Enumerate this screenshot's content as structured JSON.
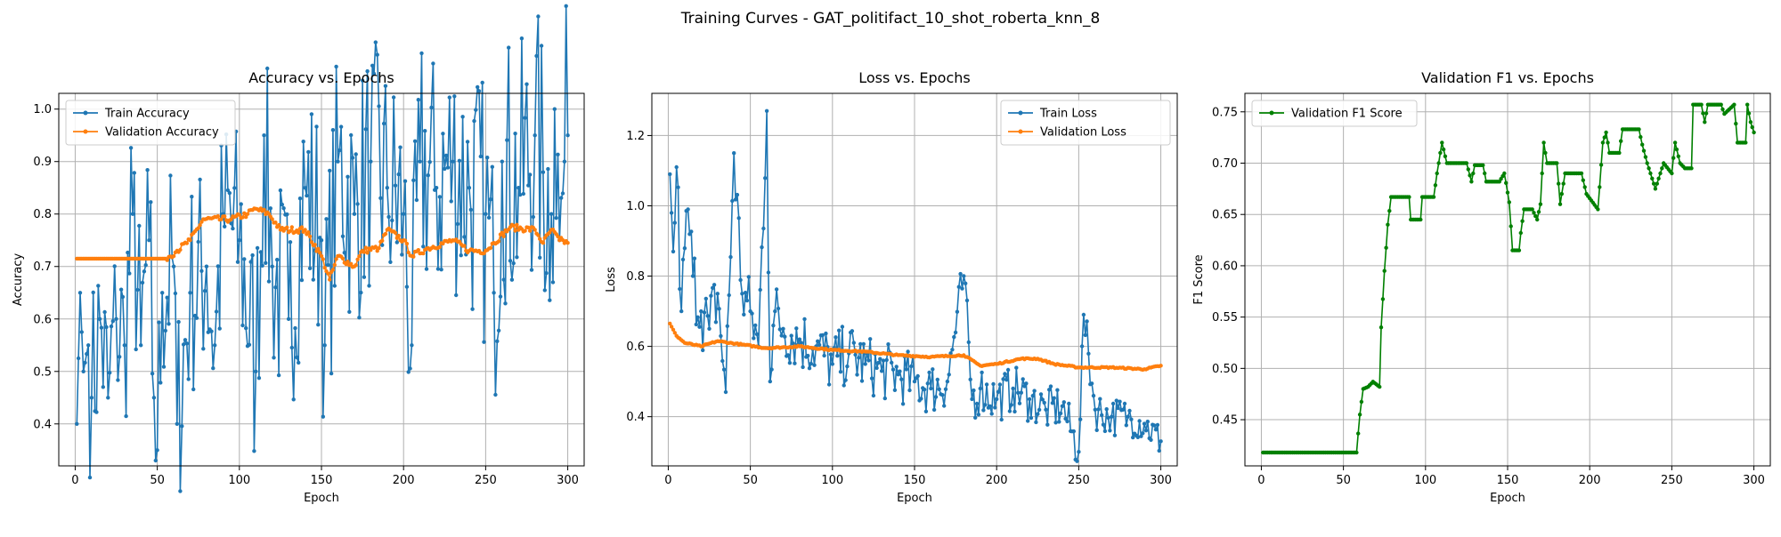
{
  "figure": {
    "suptitle": "Training Curves - GAT_politifact_10_shot_roberta_knn_8"
  },
  "colors": {
    "train": "#1f77b4",
    "val": "#ff7f0e",
    "f1": "#008000",
    "grid": "#b0b0b0"
  },
  "chart_data": [
    {
      "type": "line",
      "title": "Accuracy vs. Epochs",
      "xlabel": "Epoch",
      "ylabel": "Accuracy",
      "xlim": [
        -10,
        310
      ],
      "ylim": [
        0.32,
        1.03
      ],
      "xticks": [
        0,
        50,
        100,
        150,
        200,
        250,
        300
      ],
      "xtick_labels": [
        "0",
        "50",
        "100",
        "150",
        "200",
        "250",
        "300"
      ],
      "yticks": [
        0.4,
        0.5,
        0.6,
        0.7,
        0.8,
        0.9,
        1.0
      ],
      "ytick_labels": [
        "0.4",
        "0.5",
        "0.6",
        "0.7",
        "0.8",
        "0.9",
        "1.0"
      ],
      "grid": true,
      "legend": "upper-left",
      "series": [
        {
          "name": "Train Accuracy",
          "color": "#1f77b4",
          "keypoints": [
            [
              1,
              0.4
            ],
            [
              3,
              0.65
            ],
            [
              5,
              0.5
            ],
            [
              8,
              0.55
            ],
            [
              10,
              0.45
            ],
            [
              15,
              0.6
            ],
            [
              20,
              0.45
            ],
            [
              25,
              0.6
            ],
            [
              30,
              0.55
            ],
            [
              35,
              0.8
            ],
            [
              40,
              0.55
            ],
            [
              45,
              0.75
            ],
            [
              48,
              0.45
            ],
            [
              50,
              0.35
            ],
            [
              53,
              0.65
            ],
            [
              60,
              0.7
            ],
            [
              62,
              0.4
            ],
            [
              70,
              0.65
            ],
            [
              80,
              0.7
            ],
            [
              85,
              0.55
            ],
            [
              90,
              0.8
            ],
            [
              100,
              0.75
            ],
            [
              110,
              0.5
            ],
            [
              115,
              0.95
            ],
            [
              120,
              0.7
            ],
            [
              130,
              0.6
            ],
            [
              140,
              0.85
            ],
            [
              150,
              0.75
            ],
            [
              152,
              0.55
            ],
            [
              160,
              0.9
            ],
            [
              170,
              0.8
            ],
            [
              180,
              0.9
            ],
            [
              190,
              0.85
            ],
            [
              200,
              0.8
            ],
            [
              205,
              0.55
            ],
            [
              210,
              0.9
            ],
            [
              220,
              0.85
            ],
            [
              230,
              0.9
            ],
            [
              240,
              0.85
            ],
            [
              250,
              0.8
            ],
            [
              255,
              0.65
            ],
            [
              260,
              0.9
            ],
            [
              270,
              0.85
            ],
            [
              280,
              0.95
            ],
            [
              290,
              0.8
            ],
            [
              292,
              1.0
            ],
            [
              295,
              0.75
            ],
            [
              298,
              0.9
            ],
            [
              300,
              0.95
            ]
          ],
          "noise": [
            0.4,
            0.55
          ],
          "noise_start": 8
        },
        {
          "name": "Validation Accuracy",
          "color": "#ff7f0e",
          "keypoints": [
            [
              1,
              0.715
            ],
            [
              55,
              0.715
            ],
            [
              62,
              0.73
            ],
            [
              70,
              0.75
            ],
            [
              78,
              0.79
            ],
            [
              95,
              0.79
            ],
            [
              105,
              0.8
            ],
            [
              110,
              0.81
            ],
            [
              118,
              0.8
            ],
            [
              125,
              0.77
            ],
            [
              140,
              0.77
            ],
            [
              150,
              0.72
            ],
            [
              155,
              0.675
            ],
            [
              160,
              0.72
            ],
            [
              170,
              0.7
            ],
            [
              175,
              0.73
            ],
            [
              185,
              0.735
            ],
            [
              190,
              0.77
            ],
            [
              200,
              0.75
            ],
            [
              205,
              0.72
            ],
            [
              215,
              0.735
            ],
            [
              230,
              0.75
            ],
            [
              240,
              0.73
            ],
            [
              250,
              0.73
            ],
            [
              255,
              0.745
            ],
            [
              265,
              0.775
            ],
            [
              280,
              0.77
            ],
            [
              285,
              0.745
            ],
            [
              290,
              0.77
            ],
            [
              295,
              0.75
            ],
            [
              300,
              0.745
            ]
          ],
          "noise": [
            0.012,
            0.012
          ],
          "noise_start": 55
        }
      ]
    },
    {
      "type": "line",
      "title": "Loss vs. Epochs",
      "xlabel": "Epoch",
      "ylabel": "Loss",
      "xlim": [
        -10,
        310
      ],
      "ylim": [
        0.26,
        1.32
      ],
      "xticks": [
        0,
        50,
        100,
        150,
        200,
        250,
        300
      ],
      "xtick_labels": [
        "0",
        "50",
        "100",
        "150",
        "200",
        "250",
        "300"
      ],
      "yticks": [
        0.4,
        0.6,
        0.8,
        1.0,
        1.2
      ],
      "ytick_labels": [
        "0.4",
        "0.6",
        "0.8",
        "1.0",
        "1.2"
      ],
      "grid": true,
      "legend": "upper-right",
      "series": [
        {
          "name": "Train Loss",
          "color": "#1f77b4",
          "keypoints": [
            [
              1,
              1.09
            ],
            [
              3,
              0.87
            ],
            [
              5,
              1.11
            ],
            [
              8,
              0.7
            ],
            [
              12,
              0.99
            ],
            [
              15,
              0.8
            ],
            [
              20,
              0.7
            ],
            [
              25,
              0.65
            ],
            [
              30,
              0.75
            ],
            [
              35,
              0.47
            ],
            [
              40,
              1.15
            ],
            [
              45,
              0.75
            ],
            [
              50,
              0.7
            ],
            [
              55,
              0.6
            ],
            [
              60,
              1.27
            ],
            [
              62,
              0.5
            ],
            [
              65,
              0.7
            ],
            [
              70,
              0.65
            ],
            [
              80,
              0.62
            ],
            [
              90,
              0.6
            ],
            [
              100,
              0.55
            ],
            [
              110,
              0.58
            ],
            [
              120,
              0.55
            ],
            [
              130,
              0.53
            ],
            [
              140,
              0.52
            ],
            [
              150,
              0.5
            ],
            [
              160,
              0.48
            ],
            [
              170,
              0.5
            ],
            [
              180,
              0.8
            ],
            [
              185,
              0.45
            ],
            [
              190,
              0.48
            ],
            [
              200,
              0.45
            ],
            [
              210,
              0.48
            ],
            [
              220,
              0.45
            ],
            [
              230,
              0.42
            ],
            [
              240,
              0.43
            ],
            [
              250,
              0.3
            ],
            [
              253,
              0.69
            ],
            [
              260,
              0.42
            ],
            [
              270,
              0.4
            ],
            [
              280,
              0.4
            ],
            [
              290,
              0.38
            ],
            [
              300,
              0.33
            ]
          ],
          "noise": [
            0.22,
            0.1
          ],
          "noise_start": 3
        },
        {
          "name": "Validation Loss",
          "color": "#ff7f0e",
          "keypoints": [
            [
              1,
              0.665
            ],
            [
              5,
              0.63
            ],
            [
              10,
              0.61
            ],
            [
              20,
              0.6
            ],
            [
              30,
              0.615
            ],
            [
              45,
              0.605
            ],
            [
              60,
              0.595
            ],
            [
              80,
              0.6
            ],
            [
              100,
              0.59
            ],
            [
              120,
              0.585
            ],
            [
              140,
              0.575
            ],
            [
              160,
              0.57
            ],
            [
              180,
              0.575
            ],
            [
              190,
              0.545
            ],
            [
              200,
              0.55
            ],
            [
              215,
              0.565
            ],
            [
              225,
              0.565
            ],
            [
              235,
              0.55
            ],
            [
              250,
              0.54
            ],
            [
              270,
              0.54
            ],
            [
              290,
              0.535
            ],
            [
              300,
              0.545
            ]
          ],
          "noise": [
            0.004,
            0.004
          ],
          "noise_start": 5
        }
      ]
    },
    {
      "type": "line",
      "title": "Validation F1 vs. Epochs",
      "xlabel": "Epoch",
      "ylabel": "F1 Score",
      "xlim": [
        -10,
        310
      ],
      "ylim": [
        0.405,
        0.768
      ],
      "xticks": [
        0,
        50,
        100,
        150,
        200,
        250,
        300
      ],
      "xtick_labels": [
        "0",
        "50",
        "100",
        "150",
        "200",
        "250",
        "300"
      ],
      "yticks": [
        0.45,
        0.5,
        0.55,
        0.6,
        0.65,
        0.7,
        0.75
      ],
      "ytick_labels": [
        "0.45",
        "0.50",
        "0.55",
        "0.60",
        "0.65",
        "0.70",
        "0.75"
      ],
      "grid": true,
      "legend": "upper-left",
      "series": [
        {
          "name": "Validation F1 Score",
          "color": "#008000",
          "keypoints": [
            [
              1,
              0.418
            ],
            [
              58,
              0.418
            ],
            [
              60,
              0.455
            ],
            [
              62,
              0.48
            ],
            [
              65,
              0.482
            ],
            [
              68,
              0.487
            ],
            [
              72,
              0.482
            ],
            [
              73,
              0.54
            ],
            [
              75,
              0.595
            ],
            [
              77,
              0.64
            ],
            [
              79,
              0.667
            ],
            [
              90,
              0.667
            ],
            [
              91,
              0.645
            ],
            [
              97,
              0.645
            ],
            [
              98,
              0.667
            ],
            [
              105,
              0.667
            ],
            [
              107,
              0.69
            ],
            [
              110,
              0.72
            ],
            [
              113,
              0.7
            ],
            [
              125,
              0.7
            ],
            [
              128,
              0.682
            ],
            [
              130,
              0.698
            ],
            [
              135,
              0.698
            ],
            [
              137,
              0.682
            ],
            [
              145,
              0.682
            ],
            [
              148,
              0.69
            ],
            [
              151,
              0.662
            ],
            [
              153,
              0.615
            ],
            [
              157,
              0.615
            ],
            [
              158,
              0.632
            ],
            [
              160,
              0.655
            ],
            [
              165,
              0.655
            ],
            [
              168,
              0.645
            ],
            [
              170,
              0.66
            ],
            [
              172,
              0.72
            ],
            [
              174,
              0.7
            ],
            [
              180,
              0.7
            ],
            [
              182,
              0.66
            ],
            [
              185,
              0.69
            ],
            [
              195,
              0.69
            ],
            [
              198,
              0.67
            ],
            [
              205,
              0.655
            ],
            [
              208,
              0.72
            ],
            [
              210,
              0.73
            ],
            [
              212,
              0.71
            ],
            [
              218,
              0.71
            ],
            [
              220,
              0.733
            ],
            [
              230,
              0.733
            ],
            [
              232,
              0.718
            ],
            [
              235,
              0.7
            ],
            [
              240,
              0.675
            ],
            [
              245,
              0.7
            ],
            [
              250,
              0.69
            ],
            [
              252,
              0.72
            ],
            [
              255,
              0.7
            ],
            [
              258,
              0.695
            ],
            [
              262,
              0.695
            ],
            [
              263,
              0.757
            ],
            [
              268,
              0.757
            ],
            [
              270,
              0.74
            ],
            [
              272,
              0.757
            ],
            [
              280,
              0.757
            ],
            [
              282,
              0.748
            ],
            [
              288,
              0.757
            ],
            [
              290,
              0.72
            ],
            [
              295,
              0.72
            ],
            [
              296,
              0.757
            ],
            [
              298,
              0.74
            ],
            [
              300,
              0.73
            ]
          ],
          "noise": [
            0.0,
            0.0
          ],
          "noise_start": 1
        }
      ]
    }
  ]
}
